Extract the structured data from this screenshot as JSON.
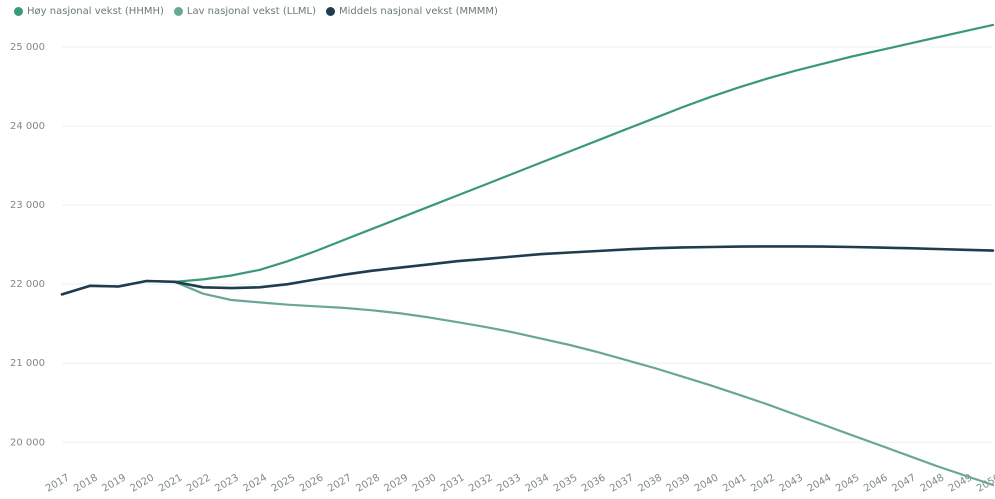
{
  "chart_data": {
    "type": "line",
    "title": "",
    "xlabel": "",
    "ylabel": "",
    "x": [
      2017,
      2018,
      2019,
      2020,
      2021,
      2022,
      2023,
      2024,
      2025,
      2026,
      2027,
      2028,
      2029,
      2030,
      2031,
      2032,
      2033,
      2034,
      2035,
      2036,
      2037,
      2038,
      2039,
      2040,
      2041,
      2042,
      2043,
      2044,
      2045,
      2046,
      2047,
      2048,
      2049,
      2050
    ],
    "x_tick_labels": [
      "2017",
      "2018",
      "2019",
      "2020",
      "2021",
      "2022",
      "2023",
      "2024",
      "2025",
      "2026",
      "2027",
      "2028",
      "2029",
      "2030",
      "2031",
      "2032",
      "2033",
      "2034",
      "2035",
      "2036",
      "2037",
      "2038",
      "2039",
      "2040",
      "2041",
      "2042",
      "2043",
      "2044",
      "2045",
      "2046",
      "2047",
      "2048",
      "2049",
      "2050"
    ],
    "ylim": [
      19700,
      25000
    ],
    "y_ticks": [
      20000,
      21000,
      22000,
      23000,
      24000,
      25000
    ],
    "y_tick_labels": [
      "20 000",
      "21 000",
      "22 000",
      "23 000",
      "24 000",
      "25 000"
    ],
    "grid": true,
    "legend_position": "top-left",
    "series": [
      {
        "name": "Høy nasjonal vekst (HHMH)",
        "color": "#3a9a73",
        "values": [
          21870,
          21980,
          21970,
          22040,
          22030,
          22060,
          22110,
          22180,
          22290,
          22420,
          22560,
          22700,
          22840,
          22980,
          23120,
          23260,
          23400,
          23540,
          23680,
          23820,
          23960,
          24100,
          24240,
          24370,
          24490,
          24600,
          24700,
          24790,
          24880,
          24960,
          25040,
          25120,
          25200,
          25280
        ]
      },
      {
        "name": "Lav nasjonal vekst (LLML)",
        "color": "#6aa698",
        "values": [
          21870,
          21980,
          21970,
          22040,
          22030,
          21880,
          21800,
          21770,
          21740,
          21720,
          21700,
          21670,
          21630,
          21580,
          21520,
          21460,
          21390,
          21310,
          21230,
          21140,
          21040,
          20940,
          20830,
          20720,
          20600,
          20480,
          20350,
          20220,
          20090,
          19960,
          19830,
          19700,
          19580,
          19460
        ]
      },
      {
        "name": "Middels nasjonal vekst (MMMM)",
        "color": "#1f3d4f",
        "values": [
          21870,
          21980,
          21970,
          22040,
          22030,
          21960,
          21950,
          21960,
          22000,
          22060,
          22120,
          22170,
          22210,
          22250,
          22290,
          22320,
          22350,
          22380,
          22400,
          22420,
          22440,
          22455,
          22465,
          22470,
          22475,
          22478,
          22478,
          22475,
          22470,
          22462,
          22455,
          22445,
          22435,
          22425
        ]
      }
    ]
  }
}
